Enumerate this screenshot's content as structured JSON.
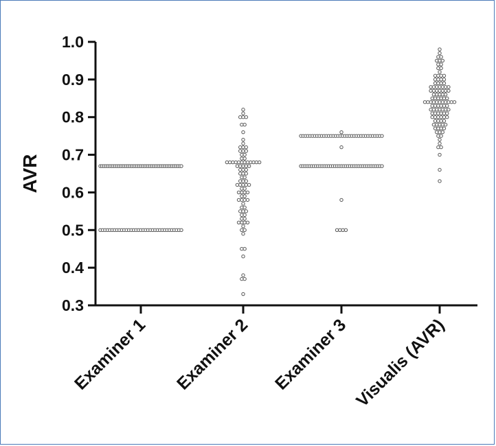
{
  "chart_data": {
    "type": "scatter",
    "title": "",
    "xlabel": "",
    "ylabel": "AVR",
    "ylim": [
      0.3,
      1.0
    ],
    "yticks": [
      "0.3",
      "0.4",
      "0.5",
      "0.6",
      "0.7",
      "0.8",
      "0.9",
      "1.0"
    ],
    "categories": [
      "Examiner 1",
      "Examiner 2",
      "Examiner 3",
      "Visualis (AVR)"
    ],
    "grid": false,
    "legend": "none",
    "marker": "open-circle",
    "colors": {
      "marker_stroke": "#555555",
      "axis": "#111111",
      "frame": "#4a7ab8"
    },
    "series": [
      {
        "values": [
          0.5,
          0.5,
          0.5,
          0.5,
          0.5,
          0.5,
          0.5,
          0.5,
          0.5,
          0.5,
          0.5,
          0.5,
          0.5,
          0.5,
          0.5,
          0.5,
          0.5,
          0.5,
          0.5,
          0.5,
          0.5,
          0.5,
          0.5,
          0.5,
          0.5,
          0.5,
          0.5,
          0.5,
          0.5,
          0.5,
          0.5,
          0.5,
          0.5,
          0.5,
          0.5,
          0.67,
          0.67,
          0.67,
          0.67,
          0.67,
          0.67,
          0.67,
          0.67,
          0.67,
          0.67,
          0.67,
          0.67,
          0.67,
          0.67,
          0.67,
          0.67,
          0.67,
          0.67,
          0.67,
          0.67,
          0.67,
          0.67,
          0.67,
          0.67,
          0.67,
          0.67,
          0.67,
          0.67,
          0.67,
          0.67,
          0.67,
          0.67,
          0.67,
          0.67,
          0.67,
          0.67,
          0.67,
          0.67,
          0.67,
          0.67,
          0.67,
          0.67,
          0.67,
          0.67,
          0.67
        ]
      },
      {
        "values": [
          0.33,
          0.37,
          0.37,
          0.38,
          0.43,
          0.45,
          0.45,
          0.49,
          0.5,
          0.5,
          0.51,
          0.52,
          0.52,
          0.52,
          0.52,
          0.53,
          0.53,
          0.54,
          0.54,
          0.55,
          0.55,
          0.55,
          0.56,
          0.56,
          0.57,
          0.58,
          0.58,
          0.58,
          0.58,
          0.59,
          0.59,
          0.6,
          0.6,
          0.6,
          0.6,
          0.61,
          0.61,
          0.62,
          0.62,
          0.62,
          0.62,
          0.62,
          0.63,
          0.63,
          0.63,
          0.64,
          0.64,
          0.65,
          0.65,
          0.65,
          0.66,
          0.66,
          0.66,
          0.67,
          0.67,
          0.67,
          0.67,
          0.67,
          0.68,
          0.68,
          0.68,
          0.68,
          0.68,
          0.68,
          0.68,
          0.68,
          0.68,
          0.68,
          0.68,
          0.68,
          0.69,
          0.69,
          0.7,
          0.7,
          0.71,
          0.71,
          0.71,
          0.72,
          0.72,
          0.72,
          0.73,
          0.74,
          0.76,
          0.78,
          0.78,
          0.8,
          0.8,
          0.8,
          0.81,
          0.82
        ]
      },
      {
        "values": [
          0.5,
          0.5,
          0.5,
          0.5,
          0.58,
          0.67,
          0.67,
          0.67,
          0.67,
          0.67,
          0.67,
          0.67,
          0.67,
          0.67,
          0.67,
          0.67,
          0.67,
          0.67,
          0.67,
          0.67,
          0.67,
          0.67,
          0.67,
          0.67,
          0.67,
          0.67,
          0.67,
          0.67,
          0.67,
          0.67,
          0.67,
          0.67,
          0.67,
          0.67,
          0.67,
          0.67,
          0.67,
          0.67,
          0.67,
          0.67,
          0.67,
          0.67,
          0.67,
          0.67,
          0.72,
          0.75,
          0.75,
          0.75,
          0.75,
          0.75,
          0.75,
          0.75,
          0.75,
          0.75,
          0.75,
          0.75,
          0.75,
          0.75,
          0.75,
          0.75,
          0.75,
          0.75,
          0.75,
          0.75,
          0.75,
          0.75,
          0.75,
          0.75,
          0.75,
          0.75,
          0.75,
          0.75,
          0.75,
          0.75,
          0.75,
          0.75,
          0.75,
          0.75,
          0.75,
          0.75,
          0.75,
          0.76
        ]
      },
      {
        "values": [
          0.63,
          0.66,
          0.7,
          0.72,
          0.72,
          0.73,
          0.74,
          0.75,
          0.75,
          0.76,
          0.76,
          0.76,
          0.77,
          0.77,
          0.77,
          0.77,
          0.78,
          0.78,
          0.78,
          0.78,
          0.78,
          0.79,
          0.79,
          0.79,
          0.79,
          0.8,
          0.8,
          0.8,
          0.8,
          0.8,
          0.8,
          0.81,
          0.81,
          0.81,
          0.81,
          0.81,
          0.81,
          0.82,
          0.82,
          0.82,
          0.82,
          0.82,
          0.82,
          0.82,
          0.83,
          0.83,
          0.83,
          0.83,
          0.83,
          0.83,
          0.84,
          0.84,
          0.84,
          0.84,
          0.84,
          0.84,
          0.84,
          0.84,
          0.84,
          0.84,
          0.84,
          0.85,
          0.85,
          0.85,
          0.85,
          0.85,
          0.85,
          0.86,
          0.86,
          0.86,
          0.86,
          0.86,
          0.87,
          0.87,
          0.87,
          0.87,
          0.87,
          0.87,
          0.87,
          0.88,
          0.88,
          0.88,
          0.88,
          0.88,
          0.88,
          0.88,
          0.89,
          0.89,
          0.89,
          0.89,
          0.9,
          0.9,
          0.9,
          0.9,
          0.91,
          0.91,
          0.91,
          0.91,
          0.92,
          0.93,
          0.93,
          0.94,
          0.94,
          0.95,
          0.95,
          0.95,
          0.96,
          0.96,
          0.97,
          0.98
        ]
      }
    ]
  }
}
